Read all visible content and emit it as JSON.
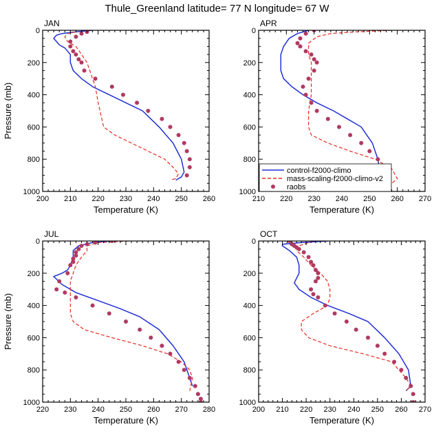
{
  "title": "Thule_Greenland  latitude= 77 N longitude= 67 W",
  "colors": {
    "control": "#1f2fd6",
    "mass": "#e8281e",
    "raobs": "#b03a60"
  },
  "chart_data": [
    {
      "type": "line",
      "panel": "JAN",
      "xlabel": "Temperature (K)",
      "ylabel": "Pressure (mb)",
      "xlim": [
        200,
        260
      ],
      "ylim": [
        1000,
        0
      ],
      "xticks": [
        200,
        210,
        220,
        230,
        240,
        250,
        260
      ],
      "yticks": [
        0,
        200,
        400,
        600,
        800,
        1000
      ],
      "series": [
        {
          "name": "control-f2000-climo",
          "style": "solid",
          "x": [
            218,
            212,
            207,
            205,
            204,
            205,
            206,
            208,
            210,
            210,
            211,
            214,
            218,
            224,
            230,
            236,
            242,
            247,
            250,
            251,
            250,
            248
          ],
          "y": [
            0,
            10,
            20,
            30,
            50,
            70,
            90,
            110,
            150,
            200,
            250,
            300,
            350,
            400,
            450,
            500,
            600,
            700,
            800,
            880,
            910,
            930
          ]
        },
        {
          "name": "mass-scaling-f2000-climo-v2",
          "style": "dashed",
          "x": [
            212,
            209,
            208,
            209,
            212,
            214,
            216,
            217,
            218,
            219,
            220,
            222,
            226,
            232,
            238,
            244,
            247,
            249,
            248,
            246
          ],
          "y": [
            10,
            20,
            40,
            70,
            100,
            150,
            200,
            250,
            300,
            350,
            450,
            600,
            650,
            700,
            750,
            800,
            850,
            890,
            920,
            930
          ]
        },
        {
          "name": "raobs",
          "style": "dots",
          "x": [
            216,
            214,
            212,
            210,
            210,
            211,
            212,
            213,
            214,
            215,
            219,
            225,
            229,
            234,
            238,
            243,
            246,
            249,
            251,
            252,
            253,
            253,
            252
          ],
          "y": [
            10,
            20,
            40,
            70,
            100,
            130,
            150,
            180,
            200,
            250,
            300,
            350,
            400,
            450,
            500,
            550,
            600,
            650,
            700,
            750,
            800,
            850,
            900
          ]
        }
      ]
    },
    {
      "type": "line",
      "panel": "APR",
      "xlabel": "Temperature (K)",
      "ylabel": "",
      "xlim": [
        210,
        270
      ],
      "ylim": [
        1000,
        0
      ],
      "xticks": [
        210,
        220,
        230,
        240,
        250,
        260,
        270
      ],
      "yticks": [
        0,
        200,
        400,
        600,
        800,
        1000
      ],
      "legend_position": "lower-left",
      "series": [
        {
          "name": "control-f2000-climo",
          "style": "solid",
          "x": [
            228,
            224,
            221,
            219,
            218,
            218,
            218,
            219,
            222,
            226,
            231,
            237,
            242,
            247,
            251,
            253,
            254,
            254
          ],
          "y": [
            0,
            20,
            50,
            100,
            150,
            200,
            250,
            300,
            350,
            400,
            450,
            500,
            550,
            600,
            700,
            800,
            900,
            940
          ]
        },
        {
          "name": "mass-scaling-f2000-climo-v2",
          "style": "dashed",
          "x": [
            258,
            245,
            236,
            231,
            228,
            228,
            229,
            229,
            229,
            229,
            228,
            228,
            229,
            235,
            243,
            252,
            258,
            260,
            258
          ],
          "y": [
            0,
            10,
            20,
            40,
            80,
            150,
            200,
            250,
            300,
            400,
            500,
            600,
            650,
            700,
            750,
            800,
            860,
            920,
            950
          ]
        },
        {
          "name": "raobs",
          "style": "dots",
          "x": [
            230,
            227,
            225,
            224,
            225,
            227,
            229,
            230,
            231,
            230,
            228,
            226,
            227,
            229,
            231,
            235,
            239,
            243,
            247,
            250,
            253,
            255,
            256,
            257,
            257,
            257
          ],
          "y": [
            0,
            20,
            50,
            80,
            100,
            130,
            150,
            180,
            200,
            250,
            300,
            350,
            400,
            450,
            500,
            550,
            600,
            650,
            700,
            750,
            800,
            850,
            900,
            950,
            980,
            1000
          ]
        }
      ]
    },
    {
      "type": "line",
      "panel": "JUL",
      "xlabel": "Temperature (K)",
      "ylabel": "Pressure (mb)",
      "xlim": [
        220,
        280
      ],
      "ylim": [
        1000,
        0
      ],
      "xticks": [
        220,
        230,
        240,
        250,
        260,
        270,
        280
      ],
      "yticks": [
        0,
        200,
        400,
        600,
        800,
        1000
      ],
      "series": [
        {
          "name": "control-f2000-climo",
          "style": "solid",
          "x": [
            245,
            238,
            233,
            231,
            231,
            230,
            229,
            227,
            224,
            227,
            232,
            240,
            248,
            255,
            262,
            267,
            271,
            273,
            274
          ],
          "y": [
            0,
            10,
            30,
            60,
            100,
            150,
            180,
            200,
            220,
            270,
            320,
            370,
            420,
            470,
            550,
            650,
            750,
            850,
            900
          ]
        },
        {
          "name": "mass-scaling-f2000-climo-v2",
          "style": "dashed",
          "x": [
            251,
            240,
            236,
            236,
            234,
            232,
            231,
            230,
            230,
            230,
            230,
            231,
            235,
            245,
            256,
            265,
            270,
            273,
            274,
            273
          ],
          "y": [
            0,
            10,
            30,
            60,
            100,
            150,
            200,
            250,
            300,
            400,
            450,
            500,
            550,
            600,
            650,
            700,
            750,
            800,
            850,
            930
          ]
        },
        {
          "name": "raobs",
          "style": "dots",
          "x": [
            245,
            239,
            236,
            234,
            233,
            232,
            232,
            231,
            231,
            230,
            229,
            226,
            225,
            228,
            232,
            238,
            244,
            250,
            255,
            259,
            263,
            266,
            269,
            271,
            273,
            275,
            276,
            277,
            277
          ],
          "y": [
            0,
            10,
            20,
            30,
            50,
            70,
            90,
            110,
            130,
            150,
            200,
            250,
            300,
            320,
            350,
            400,
            450,
            500,
            550,
            600,
            650,
            700,
            750,
            800,
            850,
            900,
            950,
            980,
            1000
          ]
        }
      ]
    },
    {
      "type": "line",
      "panel": "OCT",
      "xlabel": "Temperature (K)",
      "ylabel": "",
      "xlim": [
        200,
        270
      ],
      "ylim": [
        1000,
        0
      ],
      "xticks": [
        200,
        210,
        220,
        230,
        240,
        250,
        260,
        270
      ],
      "yticks": [
        0,
        200,
        400,
        600,
        800,
        1000
      ],
      "series": [
        {
          "name": "control-f2000-climo",
          "style": "solid",
          "x": [
            229,
            218,
            210,
            210,
            213,
            216,
            217,
            217,
            216,
            215,
            217,
            222,
            229,
            238,
            246,
            253,
            259,
            263,
            264,
            262
          ],
          "y": [
            0,
            10,
            20,
            30,
            60,
            100,
            150,
            200,
            230,
            260,
            300,
            350,
            400,
            450,
            500,
            600,
            700,
            800,
            900,
            930
          ]
        },
        {
          "name": "mass-scaling-f2000-climo-v2",
          "style": "dashed",
          "x": [
            223,
            217,
            216,
            219,
            222,
            226,
            229,
            230,
            230,
            229,
            223,
            218,
            218,
            221,
            230,
            244,
            256,
            262,
            264,
            262
          ],
          "y": [
            0,
            30,
            60,
            100,
            150,
            200,
            250,
            300,
            350,
            400,
            450,
            500,
            550,
            600,
            650,
            700,
            750,
            850,
            900,
            930
          ]
        },
        {
          "name": "raobs",
          "style": "dots",
          "x": [
            213,
            214,
            215,
            216,
            217,
            219,
            221,
            222,
            223,
            224,
            225,
            225,
            224,
            222,
            223,
            225,
            228,
            232,
            237,
            241,
            246,
            250,
            253,
            257,
            260,
            262,
            264,
            265,
            265
          ],
          "y": [
            0,
            20,
            30,
            40,
            50,
            70,
            100,
            130,
            150,
            180,
            200,
            230,
            250,
            300,
            330,
            350,
            400,
            450,
            500,
            550,
            600,
            650,
            700,
            750,
            800,
            850,
            900,
            950,
            1000
          ]
        }
      ]
    }
  ]
}
